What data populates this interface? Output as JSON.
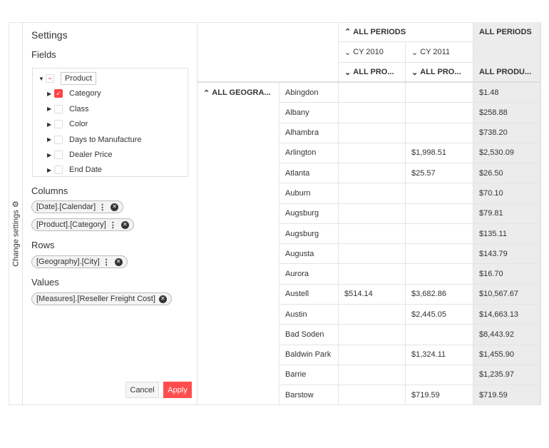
{
  "sidebar": {
    "toggle_label": "Change settings",
    "icon": "gear-icon"
  },
  "settings": {
    "title": "Settings",
    "fields_label": "Fields",
    "fields": [
      {
        "label": "Product",
        "state": "indeterminate",
        "expanded": true
      },
      {
        "label": "Category",
        "state": "checked"
      },
      {
        "label": "Class",
        "state": "unchecked"
      },
      {
        "label": "Color",
        "state": "unchecked"
      },
      {
        "label": "Days to Manufacture",
        "state": "unchecked"
      },
      {
        "label": "Dealer Price",
        "state": "unchecked"
      },
      {
        "label": "End Date",
        "state": "unchecked"
      }
    ],
    "columns_label": "Columns",
    "columns": [
      "[Date].[Calendar]",
      "[Product].[Category]"
    ],
    "rows_label": "Rows",
    "rows": [
      "[Geography].[City]"
    ],
    "values_label": "Values",
    "values": [
      "[Measures].[Reseller Freight Cost]"
    ],
    "cancel": "Cancel",
    "apply": "Apply",
    "accent": "#ff4d4d"
  },
  "pivot": {
    "col_header1": "ALL PERIODS",
    "total_header": "ALL PERIODS",
    "years": [
      "CY 2010",
      "CY 2011"
    ],
    "prod_headers": [
      "ALL PRO...",
      "ALL PRO..."
    ],
    "total_prod": "ALL PRODU...",
    "row_header": "ALL GEOGRA...",
    "rows": [
      [
        "Abingdon",
        "",
        "",
        "$1.48"
      ],
      [
        "Albany",
        "",
        "",
        "$258.88"
      ],
      [
        "Alhambra",
        "",
        "",
        "$738.20"
      ],
      [
        "Arlington",
        "",
        "$1,998.51",
        "$2,530.09"
      ],
      [
        "Atlanta",
        "",
        "$25.57",
        "$26.50"
      ],
      [
        "Auburn",
        "",
        "",
        "$70.10"
      ],
      [
        "Augsburg",
        "",
        "",
        "$79.81"
      ],
      [
        "Augsburg",
        "",
        "",
        "$135.11"
      ],
      [
        "Augusta",
        "",
        "",
        "$143.79"
      ],
      [
        "Aurora",
        "",
        "",
        "$16.70"
      ],
      [
        "Austell",
        "$514.14",
        "$3,682.86",
        "$10,567.67"
      ],
      [
        "Austin",
        "",
        "$2,445.05",
        "$14,663.13"
      ],
      [
        "Bad Soden",
        "",
        "",
        "$8,443.92"
      ],
      [
        "Baldwin Park",
        "",
        "$1,324.11",
        "$1,455.90"
      ],
      [
        "Barrie",
        "",
        "",
        "$1,235.97"
      ],
      [
        "Barstow",
        "",
        "$719.59",
        "$719.59"
      ]
    ]
  }
}
